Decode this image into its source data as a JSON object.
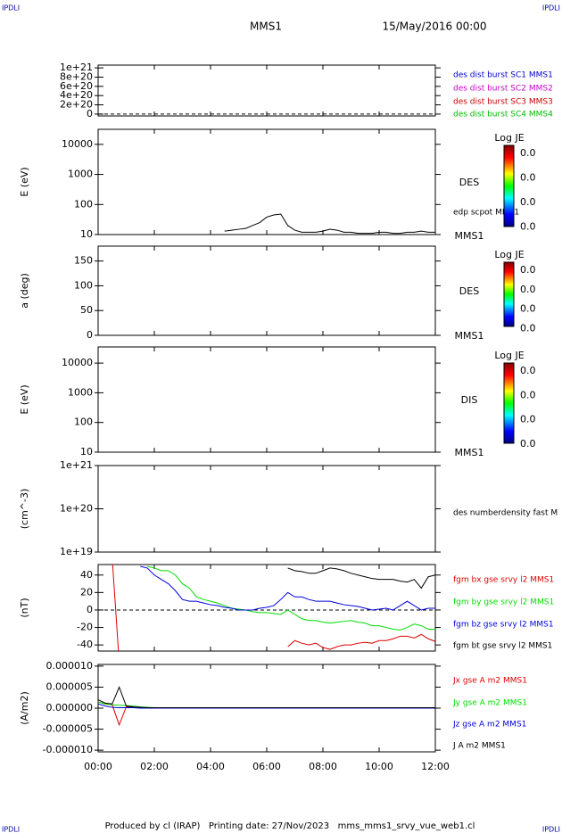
{
  "header": {
    "left_logo": "IPDLI",
    "right_logo": "IPDLI",
    "spacecraft": "MMS1",
    "date": "15/May/2016 00:00"
  },
  "footer": {
    "text": "Produced by cl (IRAP)   Printing date: 27/Nov/2023   mms_mms1_srvy_vue_web1.cl",
    "left_logo": "IPDLI",
    "right_logo": "IPDLI"
  },
  "chart_data": [
    {
      "type": "line",
      "ylim": [
        -4e+19,
        1.06e+21
      ],
      "yticks": [
        0,
        {
          "value": 2e+20,
          "label": "2e+20"
        },
        {
          "value": 4e+20,
          "label": "4e+20"
        },
        {
          "value": 6e+20,
          "label": "6e+20"
        },
        {
          "value": 8e+20,
          "label": "8e+20"
        },
        {
          "value": 1e+21,
          "label": "1e+21"
        }
      ],
      "hline": 0,
      "legend": [
        {
          "name": "des dist burst SC1 MMS1",
          "color": "#0000cc"
        },
        {
          "name": "des dist burst SC2 MMS2",
          "color": "#cc00cc"
        },
        {
          "name": "des dist burst SC3 MMS3",
          "color": "#cc0000"
        },
        {
          "name": "des dist burst SC4 MMS4",
          "color": "#00bb00"
        }
      ]
    },
    {
      "type": "line",
      "ylabel": "E (eV)",
      "log": true,
      "ylim": [
        10,
        31623
      ],
      "yticks": [
        10,
        100,
        1000,
        10000
      ],
      "x": [
        4.5,
        4.75,
        5,
        5.25,
        5.5,
        5.75,
        6,
        6.25,
        6.5,
        6.75,
        7,
        7.25,
        7.5,
        7.75,
        8,
        8.25,
        8.5,
        8.75,
        9,
        9.25,
        9.5,
        9.75,
        10,
        10.25,
        10.5,
        10.75,
        11,
        11.25,
        11.5,
        11.75,
        12
      ],
      "series": [
        {
          "name": "edp scpot MMS1",
          "color": "#000000",
          "values": [
            13,
            14,
            15,
            16,
            20,
            25,
            38,
            45,
            48,
            20,
            14,
            12,
            12,
            12,
            13,
            15,
            14,
            12,
            12,
            11,
            11,
            11,
            12,
            12,
            11,
            11,
            12,
            12,
            13,
            12,
            12
          ]
        }
      ],
      "labels": [
        "DES",
        "MMS1"
      ],
      "colorbar": {
        "title": "Log JE",
        "ticks": [
          "0.0",
          "0.0",
          "0.0",
          "0.0"
        ]
      }
    },
    {
      "type": "line",
      "ylabel": "a (deg)",
      "ylim": [
        0,
        180
      ],
      "yticks": [
        0,
        50,
        100,
        150
      ],
      "labels": [
        "DES",
        "MMS1"
      ],
      "colorbar": {
        "title": "Log JE",
        "ticks": [
          "0.0",
          "0.0",
          "0.0",
          "0.0"
        ]
      }
    },
    {
      "type": "line",
      "ylabel": "E (eV)",
      "log": true,
      "ylim": [
        10,
        35000
      ],
      "yticks": [
        10,
        100,
        1000,
        10000
      ],
      "labels": [
        "DIS",
        "MMS1"
      ],
      "colorbar": {
        "title": "Log JE",
        "ticks": [
          "0.0",
          "0.0",
          "0.0",
          "0.0"
        ]
      }
    },
    {
      "type": "line",
      "ylabel": "(cm^-3)",
      "log": true,
      "ylim": [
        1e+19,
        1e+21
      ],
      "yticks": [
        {
          "value": 1e+19,
          "label": "1e+19"
        },
        {
          "value": 1e+20,
          "label": "1e+20"
        },
        {
          "value": 1e+21,
          "label": "1e+21"
        }
      ],
      "legend": [
        {
          "name": "des numberdensity fast M",
          "color": "#000000"
        }
      ]
    },
    {
      "type": "line",
      "ylabel": "(nT)",
      "ylim": [
        -47,
        52
      ],
      "yticks": [
        -40,
        -20,
        0,
        20,
        40
      ],
      "hline": 0,
      "x": [
        0.5,
        0.75,
        1,
        1.25,
        1.5,
        1.75,
        2,
        2.25,
        2.5,
        2.75,
        3,
        3.25,
        3.5,
        3.75,
        4,
        4.25,
        4.5,
        4.75,
        5,
        5.25,
        5.5,
        5.75,
        6,
        6.25,
        6.5,
        6.75,
        7,
        7.25,
        7.5,
        7.75,
        8,
        8.25,
        8.5,
        8.75,
        9,
        9.25,
        9.5,
        9.75,
        10,
        10.25,
        10.5,
        10.75,
        11,
        11.25,
        11.5,
        11.75,
        12
      ],
      "series": [
        {
          "name": "fgm bx gse srvy l2 MMS1",
          "color": "#dd0000",
          "values": [
            60,
            -60,
            null,
            null,
            null,
            null,
            null,
            null,
            null,
            null,
            null,
            null,
            null,
            null,
            null,
            null,
            null,
            null,
            null,
            null,
            null,
            null,
            null,
            null,
            null,
            -42,
            -35,
            -38,
            -40,
            -38,
            -43,
            -45,
            -42,
            -40,
            -40,
            -38,
            -37,
            -38,
            -35,
            -35,
            -33,
            -30,
            -30,
            -32,
            -28,
            -33,
            -36
          ]
        },
        {
          "name": "fgm by gse srvy l2 MMS1",
          "color": "#00dd00",
          "values": [
            null,
            null,
            null,
            null,
            null,
            50,
            48,
            45,
            45,
            40,
            30,
            25,
            15,
            12,
            10,
            8,
            5,
            2,
            1,
            0,
            -2,
            -3,
            -3,
            -4,
            -5,
            0,
            -5,
            -10,
            -12,
            -12,
            -14,
            -15,
            -14,
            -13,
            -12,
            -14,
            -15,
            -18,
            -18,
            -20,
            -22,
            -23,
            -20,
            -16,
            -18,
            -22,
            -22
          ]
        },
        {
          "name": "fgm bz gse srvy l2 MMS1",
          "color": "#0000dd",
          "values": [
            null,
            null,
            null,
            null,
            50,
            48,
            40,
            35,
            30,
            22,
            12,
            10,
            10,
            8,
            6,
            5,
            3,
            2,
            0,
            0,
            0,
            2,
            3,
            5,
            12,
            20,
            15,
            15,
            12,
            10,
            10,
            10,
            8,
            6,
            5,
            4,
            2,
            0,
            1,
            2,
            0,
            5,
            10,
            5,
            0,
            2,
            2
          ]
        },
        {
          "name": "fgm bt gse srvy l2 MMS1",
          "color": "#000000",
          "values": [
            null,
            null,
            null,
            null,
            null,
            null,
            null,
            null,
            null,
            null,
            null,
            null,
            null,
            null,
            null,
            null,
            null,
            null,
            null,
            null,
            null,
            null,
            null,
            null,
            null,
            48,
            45,
            44,
            42,
            42,
            45,
            48,
            47,
            45,
            42,
            40,
            38,
            36,
            35,
            35,
            35,
            33,
            32,
            35,
            25,
            38,
            40
          ]
        }
      ]
    },
    {
      "type": "line",
      "ylabel": "(A/m2)",
      "ylim": [
        -1.04e-05,
        1.04e-05
      ],
      "yticks": [
        {
          "value": -1e-05,
          "label": "-0.000010"
        },
        {
          "value": -5e-06,
          "label": "-0.000005"
        },
        {
          "value": 0,
          "label": "0.000000"
        },
        {
          "value": 5e-06,
          "label": "0.000005"
        },
        {
          "value": 1e-05,
          "label": "0.000010"
        }
      ],
      "x": [
        0,
        0.25,
        0.5,
        0.75,
        1,
        1.25,
        1.5,
        1.75,
        2,
        3,
        4,
        6,
        8,
        10,
        12
      ],
      "series": [
        {
          "name": "Jx gse A m2 MMS1",
          "color": "#dd0000",
          "values": [
            1.5e-06,
            1e-06,
            8e-07,
            -4e-06,
            3e-07,
            2e-07,
            1e-07,
            0,
            0,
            0,
            0,
            0,
            0,
            0,
            0
          ]
        },
        {
          "name": "Jy gse A m2 MMS1",
          "color": "#00dd00",
          "values": [
            1.5e-06,
            1e-06,
            8e-07,
            7e-07,
            6e-07,
            5e-07,
            3e-07,
            2e-07,
            1e-07,
            0,
            0,
            0,
            0,
            0,
            0
          ]
        },
        {
          "name": "Jz gse A m2 MMS1",
          "color": "#0000dd",
          "values": [
            1e-06,
            5e-07,
            2e-07,
            1e-07,
            1e-07,
            1e-07,
            0,
            0,
            0,
            0,
            0,
            0,
            0,
            0,
            0
          ]
        },
        {
          "name": "J A m2 MMS1",
          "color": "#000000",
          "values": [
            2e-06,
            1.2e-06,
            1e-06,
            5e-06,
            5e-07,
            3e-07,
            2e-07,
            1e-07,
            1e-07,
            1e-07,
            1e-07,
            1e-07,
            1e-07,
            1e-07,
            1e-07
          ]
        }
      ],
      "xlim": [
        0,
        12
      ],
      "xticks": [
        {
          "value": 0,
          "label": "00:00"
        },
        {
          "value": 2,
          "label": "02:00"
        },
        {
          "value": 4,
          "label": "04:00"
        },
        {
          "value": 6,
          "label": "06:00"
        },
        {
          "value": 8,
          "label": "08:00"
        },
        {
          "value": 10,
          "label": "10:00"
        },
        {
          "value": 12,
          "label": "12:00"
        }
      ]
    }
  ]
}
